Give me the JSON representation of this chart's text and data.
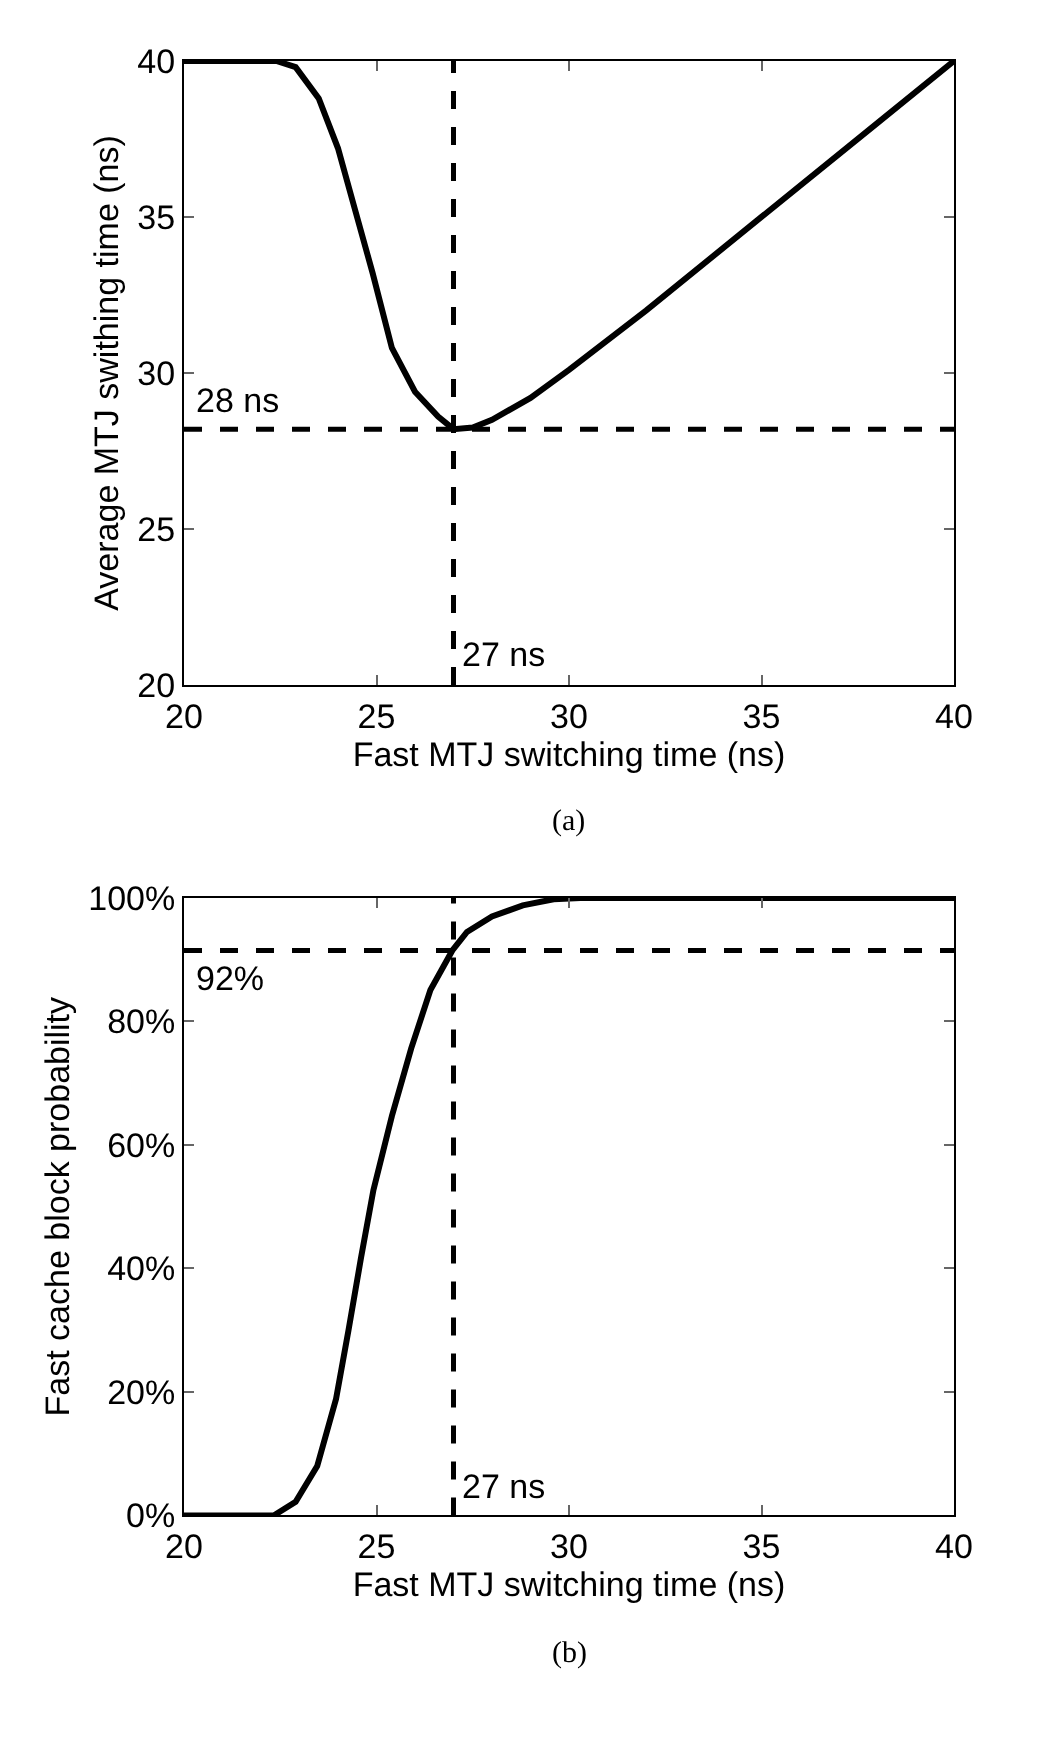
{
  "chart_data": [
    {
      "type": "line",
      "xlabel": "Fast MTJ switching time (ns)",
      "ylabel": "Average MTJ swithing time (ns)",
      "annotations": [
        "(a)"
      ],
      "series": [
        {
          "color": "#000000",
          "x": [
            20,
            21,
            22,
            22.4,
            22.9,
            23.5,
            24.0,
            24.45,
            24.9,
            25.4,
            26.0,
            26.6,
            27.0,
            27.5,
            28,
            29,
            30,
            32,
            35,
            38,
            40
          ],
          "values": [
            40,
            40,
            40,
            40,
            39.8,
            38.8,
            37.2,
            35.2,
            33.2,
            30.8,
            29.4,
            28.6,
            28.2,
            28.25,
            28.5,
            29.2,
            30.1,
            32.0,
            35.0,
            38.0,
            40
          ]
        }
      ],
      "xlim": [
        20,
        40
      ],
      "xticks": [
        20,
        25,
        30,
        35,
        40
      ],
      "ylim": [
        20,
        40
      ],
      "yticks": [
        20,
        25,
        30,
        35,
        40
      ],
      "ref_lines": [
        {
          "axis": "y",
          "value": 28.2,
          "label": "28 ns",
          "color": "#000000",
          "line_style": "dashed"
        },
        {
          "axis": "x",
          "value": 27,
          "label": "27 ns",
          "color": "#000000",
          "line_style": "dashed"
        }
      ],
      "marker": "none",
      "line_style": "solid"
    },
    {
      "type": "line",
      "xlabel": "Fast MTJ switching time (ns)",
      "ylabel": "Fast cache block probability",
      "annotations": [
        "(b)"
      ],
      "series": [
        {
          "color": "#000000",
          "x": [
            20,
            21,
            22,
            22.33,
            22.9,
            23.46,
            23.95,
            24.27,
            24.6,
            24.92,
            25.4,
            25.9,
            26.4,
            26.97,
            27.35,
            28.0,
            28.8,
            29.6,
            30.3,
            35,
            40
          ],
          "values": [
            0,
            0,
            0,
            0,
            2.2,
            8.0,
            18.9,
            29.9,
            41.8,
            52.7,
            64.7,
            75.6,
            85.1,
            91.5,
            94.5,
            97.0,
            98.8,
            99.8,
            100,
            100,
            100
          ]
        }
      ],
      "xlim": [
        20,
        40
      ],
      "xticks": [
        20,
        25,
        30,
        35,
        40
      ],
      "ylim": [
        0,
        100
      ],
      "yticks": [
        {
          "value": 0,
          "label": "0%"
        },
        {
          "value": 20,
          "label": "20%"
        },
        {
          "value": 40,
          "label": "40%"
        },
        {
          "value": 60,
          "label": "60%"
        },
        {
          "value": 80,
          "label": "80%"
        },
        {
          "value": 100,
          "label": "100%"
        }
      ],
      "ref_lines": [
        {
          "axis": "y",
          "value": 91.5,
          "label": "92%",
          "color": "#000000",
          "line_style": "dashed"
        },
        {
          "axis": "x",
          "value": 27,
          "label": "27 ns",
          "color": "#000000",
          "line_style": "dashed"
        }
      ],
      "marker": "none",
      "line_style": "solid"
    }
  ]
}
